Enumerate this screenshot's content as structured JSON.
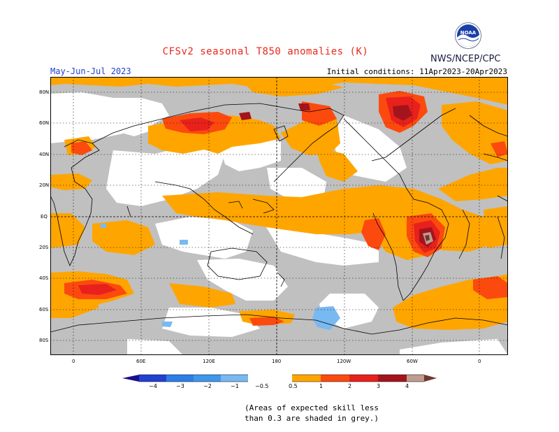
{
  "header": {
    "title": "CFSv2 seasonal T850 anomalies (K)",
    "season": "May-Jun-Jul 2023",
    "initial_conditions": "Initial conditions: 11Apr2023-20Apr2023",
    "agency": "NWS/NCEP/CPC",
    "logo_text": "NOAA"
  },
  "axes": {
    "lat_labels": [
      "80N",
      "60N",
      "40N",
      "20N",
      "EQ",
      "20S",
      "40S",
      "60S",
      "80S"
    ],
    "lon_labels": [
      "0",
      "60E",
      "120E",
      "180",
      "120W",
      "60W",
      "0"
    ]
  },
  "colorbar": {
    "tick_labels": [
      "−4",
      "−3",
      "−2",
      "−1",
      "−0.5",
      "0.5",
      "1",
      "2",
      "3",
      "4"
    ],
    "colors": {
      "lt_-4": "#1a0f8c",
      "-4_-3": "#2340d1",
      "-3_-2": "#2c7fe8",
      "-2_-1": "#3e97ec",
      "-1_-0.5": "#79b9f1",
      "neutral": "#ffffff",
      "0.5_1": "#ffa500",
      "1_2": "#fc4a0f",
      "2_3": "#e8211c",
      "3_4": "#a4141c",
      "gt_4": "#c09c90",
      "gt_5": "#6e3a2e",
      "low_skill": "#c0c0c0"
    }
  },
  "note": {
    "line1": "(Areas of expected skill less",
    "line2": "than 0.3 are shaded in grey.)"
  }
}
